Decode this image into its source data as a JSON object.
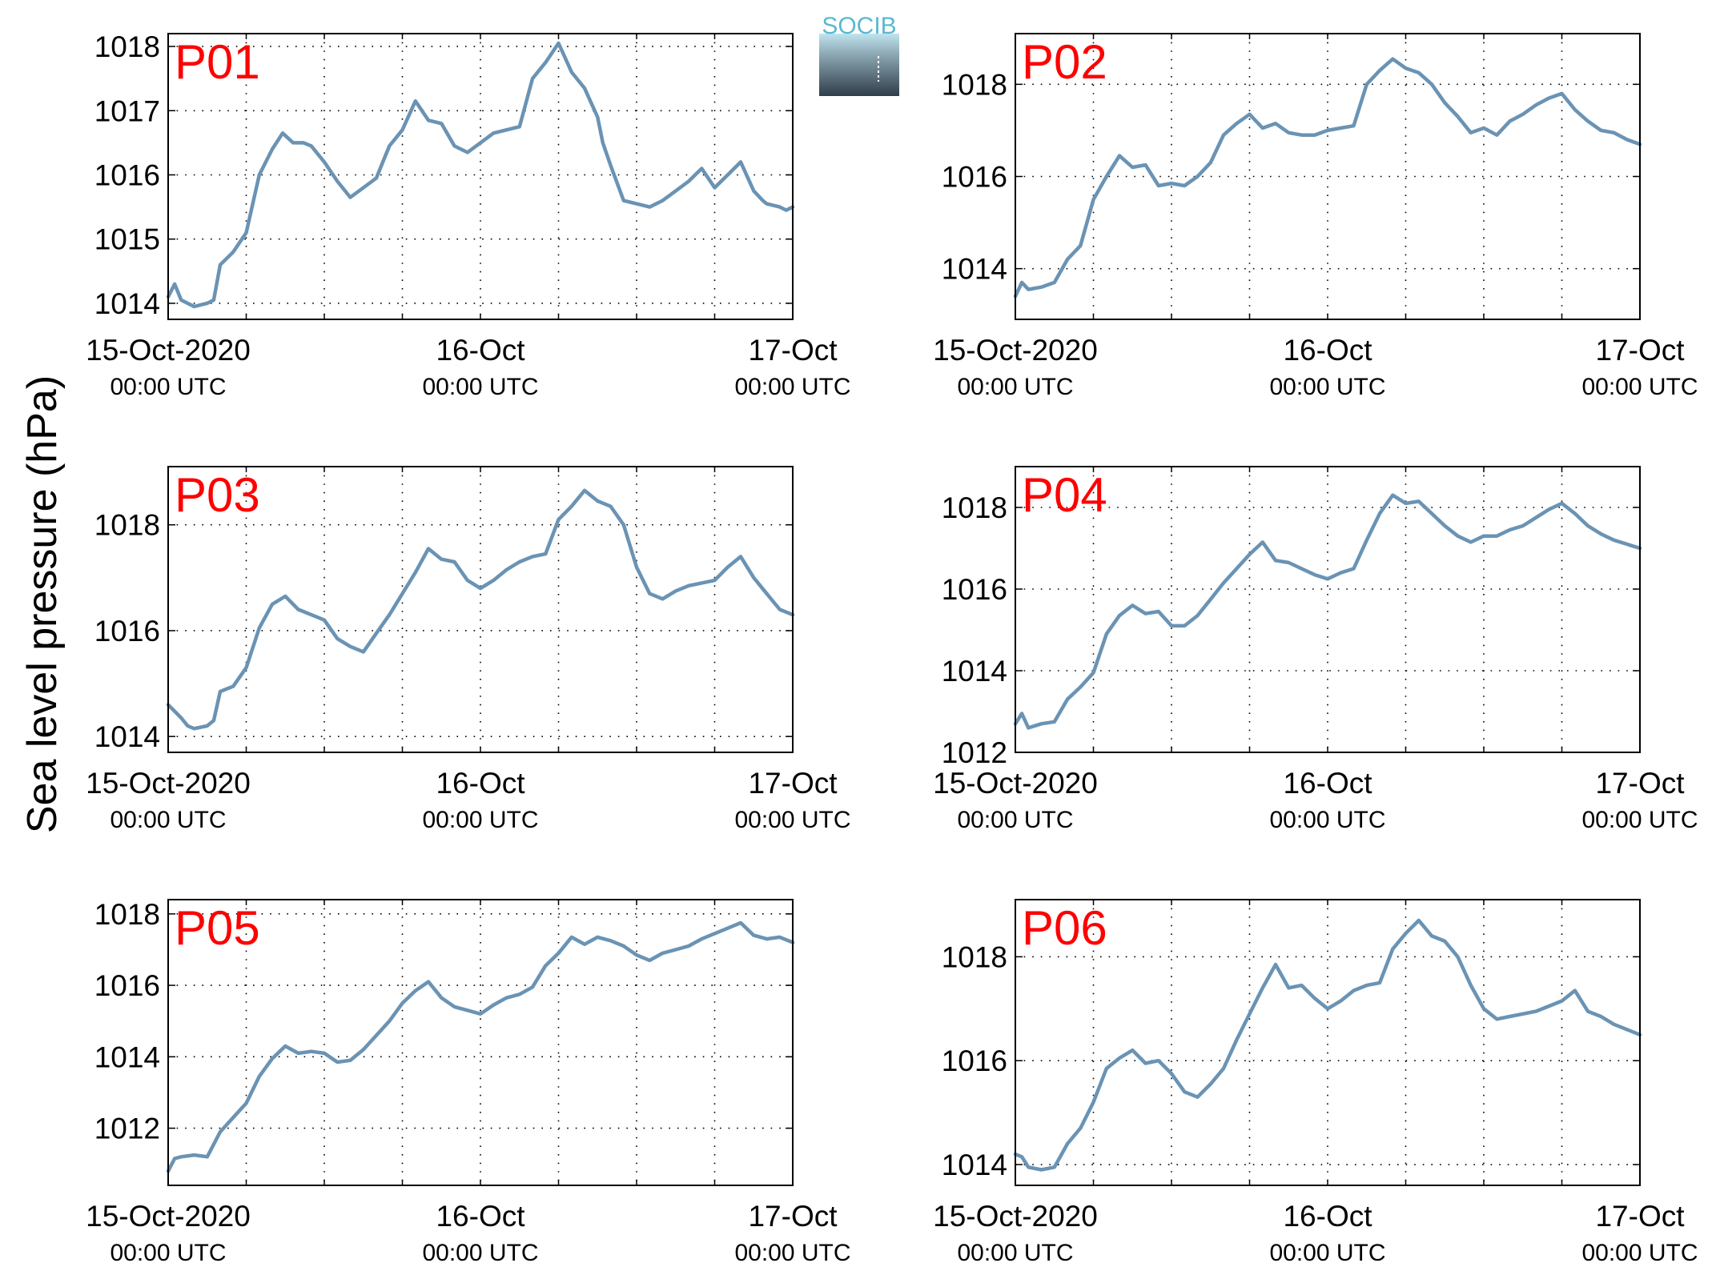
{
  "ylabel": "Sea level pressure (hPa)",
  "logo": {
    "text": "SOCIB",
    "text_color": "#5bb8cf"
  },
  "style": {
    "line_color": "#6a93b4",
    "label_color": "#ff0000",
    "grid_color": "#000000"
  },
  "x_ticks": [
    {
      "line1": "15-Oct-2020",
      "line2": "00:00 UTC"
    },
    {
      "line1": "16-Oct",
      "line2": "00:00 UTC"
    },
    {
      "line1": "17-Oct",
      "line2": "00:00 UTC"
    }
  ],
  "chart_data": [
    {
      "type": "line",
      "title": "P01",
      "xlabel": "",
      "ylabel": "Sea level pressure (hPa)",
      "x_unit": "hours since 15-Oct-2020 00:00 UTC",
      "xlim": [
        0,
        48
      ],
      "ylim": [
        1013.75,
        1018.2
      ],
      "yticks": [
        1014,
        1015,
        1016,
        1017,
        1018
      ],
      "grid": true,
      "x": [
        0,
        0.5,
        1,
        2,
        3,
        3.5,
        4,
        5,
        6,
        7,
        8,
        8.8,
        9.6,
        10.4,
        11,
        12,
        13,
        14,
        15,
        16,
        16.5,
        17,
        18,
        19,
        20,
        21,
        22,
        23,
        24,
        25,
        26,
        27,
        28,
        29,
        30,
        31,
        32,
        33,
        33.4,
        34,
        35,
        36,
        37,
        38,
        39,
        40,
        41,
        42,
        43,
        44,
        45,
        45.7,
        46,
        47,
        47.5,
        48
      ],
      "values": [
        1014.1,
        1014.3,
        1014.05,
        1013.95,
        1014.0,
        1014.05,
        1014.6,
        1014.8,
        1015.1,
        1016.0,
        1016.4,
        1016.65,
        1016.5,
        1016.5,
        1016.45,
        1016.2,
        1015.9,
        1015.65,
        1015.8,
        1015.95,
        1016.2,
        1016.45,
        1016.7,
        1017.15,
        1016.85,
        1016.8,
        1016.45,
        1016.35,
        1016.5,
        1016.65,
        1016.7,
        1016.75,
        1017.5,
        1017.75,
        1018.05,
        1017.6,
        1017.35,
        1016.9,
        1016.5,
        1016.15,
        1015.6,
        1015.55,
        1015.5,
        1015.6,
        1015.75,
        1015.9,
        1016.1,
        1015.8,
        1016.0,
        1016.2,
        1015.75,
        1015.6,
        1015.55,
        1015.5,
        1015.45,
        1015.5
      ]
    },
    {
      "type": "line",
      "title": "P02",
      "xlabel": "",
      "ylabel": "Sea level pressure (hPa)",
      "x_unit": "hours since 15-Oct-2020 00:00 UTC",
      "xlim": [
        0,
        48
      ],
      "ylim": [
        1012.9,
        1019.1
      ],
      "yticks": [
        1014,
        1016,
        1018
      ],
      "grid": true,
      "x": [
        0,
        0.5,
        1,
        2,
        3,
        4,
        5,
        6,
        7,
        8,
        9,
        10,
        11,
        12,
        13,
        14,
        15,
        16,
        17,
        18,
        19,
        20,
        21,
        22,
        23,
        24,
        25,
        26,
        27,
        28,
        29,
        30,
        31,
        32,
        33,
        34,
        35,
        36,
        37,
        38,
        39,
        40,
        41,
        42,
        43,
        44,
        45,
        46,
        47,
        48
      ],
      "values": [
        1013.4,
        1013.7,
        1013.55,
        1013.6,
        1013.7,
        1014.2,
        1014.5,
        1015.5,
        1016.0,
        1016.45,
        1016.2,
        1016.25,
        1015.8,
        1015.85,
        1015.8,
        1016.0,
        1016.3,
        1016.9,
        1017.15,
        1017.35,
        1017.05,
        1017.15,
        1016.95,
        1016.9,
        1016.9,
        1017.0,
        1017.05,
        1017.1,
        1018.0,
        1018.3,
        1018.55,
        1018.35,
        1018.25,
        1018.0,
        1017.6,
        1017.3,
        1016.95,
        1017.05,
        1016.9,
        1017.2,
        1017.35,
        1017.55,
        1017.7,
        1017.8,
        1017.45,
        1017.2,
        1017.0,
        1016.95,
        1016.8,
        1016.7
      ]
    },
    {
      "type": "line",
      "title": "P03",
      "xlabel": "",
      "ylabel": "Sea level pressure (hPa)",
      "x_unit": "hours since 15-Oct-2020 00:00 UTC",
      "xlim": [
        0,
        48
      ],
      "ylim": [
        1013.7,
        1019.1
      ],
      "yticks": [
        1014,
        1016,
        1018
      ],
      "grid": true,
      "x": [
        0,
        1,
        1.5,
        2,
        3,
        3.5,
        4,
        5,
        6,
        7,
        8,
        9,
        10,
        11,
        12,
        13,
        14,
        15,
        16,
        17,
        18,
        19,
        20,
        21,
        22,
        23,
        24,
        25,
        26,
        27,
        28,
        29,
        30,
        31,
        32,
        33,
        34,
        35,
        36,
        37,
        38,
        39,
        40,
        41,
        42,
        43,
        44,
        45,
        46,
        47,
        48
      ],
      "values": [
        1014.6,
        1014.35,
        1014.2,
        1014.15,
        1014.2,
        1014.3,
        1014.85,
        1014.95,
        1015.3,
        1016.05,
        1016.5,
        1016.65,
        1016.4,
        1016.3,
        1016.2,
        1015.85,
        1015.7,
        1015.6,
        1015.95,
        1016.3,
        1016.7,
        1017.1,
        1017.55,
        1017.35,
        1017.3,
        1016.95,
        1016.8,
        1016.95,
        1017.15,
        1017.3,
        1017.4,
        1017.45,
        1018.1,
        1018.35,
        1018.65,
        1018.45,
        1018.35,
        1018.0,
        1017.2,
        1016.7,
        1016.6,
        1016.75,
        1016.85,
        1016.9,
        1016.95,
        1017.2,
        1017.4,
        1017.0,
        1016.7,
        1016.4,
        1016.3
      ]
    },
    {
      "type": "line",
      "title": "P04",
      "xlabel": "",
      "ylabel": "Sea level pressure (hPa)",
      "x_unit": "hours since 15-Oct-2020 00:00 UTC",
      "xlim": [
        0,
        48
      ],
      "ylim": [
        1012.0,
        1019.0
      ],
      "yticks": [
        1012,
        1014,
        1016,
        1018
      ],
      "grid": true,
      "x": [
        0,
        0.5,
        1,
        2,
        3,
        4,
        5,
        6,
        7,
        8,
        9,
        10,
        11,
        12,
        13,
        14,
        15,
        16,
        17,
        18,
        19,
        20,
        21,
        22,
        23,
        24,
        25,
        26,
        27,
        28,
        29,
        30,
        31,
        32,
        33,
        34,
        35,
        36,
        37,
        38,
        39,
        40,
        41,
        42,
        43,
        44,
        45,
        46,
        47,
        48
      ],
      "values": [
        1012.7,
        1012.95,
        1012.6,
        1012.7,
        1012.75,
        1013.3,
        1013.6,
        1013.95,
        1014.9,
        1015.35,
        1015.6,
        1015.4,
        1015.45,
        1015.1,
        1015.1,
        1015.35,
        1015.75,
        1016.15,
        1016.5,
        1016.85,
        1017.15,
        1016.7,
        1016.65,
        1016.5,
        1016.35,
        1016.25,
        1016.4,
        1016.5,
        1017.2,
        1017.85,
        1018.3,
        1018.1,
        1018.15,
        1017.85,
        1017.55,
        1017.3,
        1017.15,
        1017.3,
        1017.3,
        1017.45,
        1017.55,
        1017.75,
        1017.95,
        1018.1,
        1017.85,
        1017.55,
        1017.35,
        1017.2,
        1017.1,
        1017.0
      ]
    },
    {
      "type": "line",
      "title": "P05",
      "xlabel": "",
      "ylabel": "Sea level pressure (hPa)",
      "x_unit": "hours since 15-Oct-2020 00:00 UTC",
      "xlim": [
        0,
        48
      ],
      "ylim": [
        1010.4,
        1018.4
      ],
      "yticks": [
        1012,
        1014,
        1016,
        1018
      ],
      "grid": true,
      "x": [
        0,
        0.5,
        1,
        2,
        3,
        4,
        5,
        6,
        7,
        8,
        9,
        10,
        11,
        12,
        13,
        14,
        15,
        16,
        17,
        18,
        19,
        20,
        21,
        22,
        23,
        24,
        25,
        26,
        27,
        28,
        29,
        30,
        31,
        32,
        33,
        34,
        35,
        36,
        37,
        38,
        39,
        40,
        41,
        42,
        43,
        44,
        45,
        46,
        47,
        48
      ],
      "values": [
        1010.8,
        1011.15,
        1011.2,
        1011.25,
        1011.2,
        1011.9,
        1012.3,
        1012.7,
        1013.45,
        1013.95,
        1014.3,
        1014.1,
        1014.15,
        1014.1,
        1013.85,
        1013.9,
        1014.2,
        1014.6,
        1015.0,
        1015.5,
        1015.85,
        1016.1,
        1015.65,
        1015.4,
        1015.3,
        1015.2,
        1015.45,
        1015.65,
        1015.75,
        1015.95,
        1016.55,
        1016.9,
        1017.35,
        1017.15,
        1017.35,
        1017.25,
        1017.1,
        1016.85,
        1016.7,
        1016.9,
        1017.0,
        1017.1,
        1017.3,
        1017.45,
        1017.6,
        1017.75,
        1017.4,
        1017.3,
        1017.35,
        1017.2
      ]
    },
    {
      "type": "line",
      "title": "P06",
      "xlabel": "",
      "ylabel": "Sea level pressure (hPa)",
      "x_unit": "hours since 15-Oct-2020 00:00 UTC",
      "xlim": [
        0,
        48
      ],
      "ylim": [
        1013.6,
        1019.1
      ],
      "yticks": [
        1014,
        1016,
        1018
      ],
      "grid": true,
      "x": [
        0,
        0.5,
        1,
        2,
        3,
        4,
        5,
        6,
        7,
        8,
        9,
        10,
        11,
        12,
        13,
        14,
        15,
        16,
        17,
        18,
        19,
        20,
        21,
        22,
        23,
        24,
        25,
        26,
        27,
        28,
        29,
        30,
        31,
        32,
        33,
        34,
        35,
        36,
        37,
        38,
        39,
        40,
        41,
        42,
        43,
        44,
        45,
        46,
        47,
        48
      ],
      "values": [
        1014.2,
        1014.15,
        1013.95,
        1013.9,
        1013.95,
        1014.4,
        1014.7,
        1015.2,
        1015.85,
        1016.05,
        1016.2,
        1015.95,
        1016.0,
        1015.75,
        1015.4,
        1015.3,
        1015.55,
        1015.85,
        1016.4,
        1016.9,
        1017.4,
        1017.85,
        1017.4,
        1017.45,
        1017.2,
        1017.0,
        1017.15,
        1017.35,
        1017.45,
        1017.5,
        1018.15,
        1018.45,
        1018.7,
        1018.4,
        1018.3,
        1018.0,
        1017.45,
        1017.0,
        1016.8,
        1016.85,
        1016.9,
        1016.95,
        1017.05,
        1017.15,
        1017.35,
        1016.95,
        1016.85,
        1016.7,
        1016.6,
        1016.5
      ]
    }
  ]
}
